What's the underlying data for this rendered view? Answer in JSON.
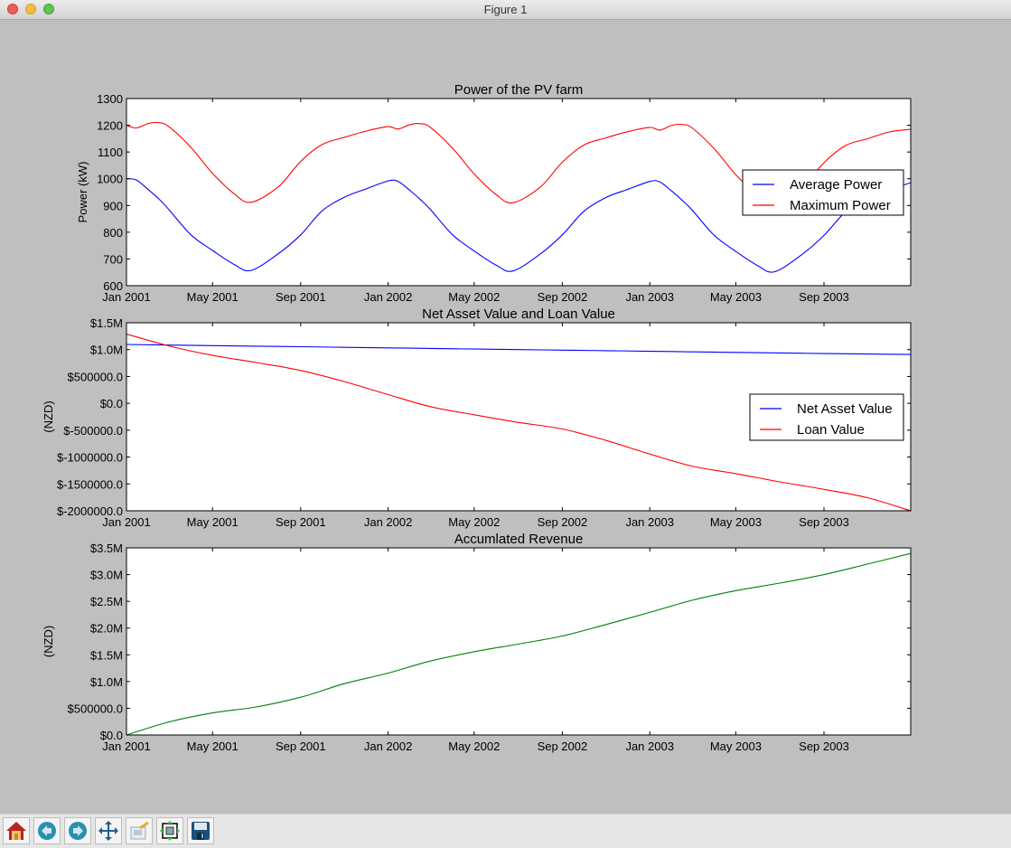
{
  "window": {
    "title": "Figure 1"
  },
  "toolbar": {
    "buttons": [
      {
        "icon": "home-icon"
      },
      {
        "icon": "back-icon"
      },
      {
        "icon": "forward-icon"
      },
      {
        "icon": "pan-icon"
      },
      {
        "icon": "zoom-icon"
      },
      {
        "icon": "subplots-icon"
      },
      {
        "icon": "save-icon"
      }
    ]
  },
  "colors": {
    "blue": "#0000ff",
    "red": "#ff0000",
    "green": "#008000",
    "figure_bg": "#bfbfbf"
  },
  "chart_data": [
    {
      "type": "line",
      "title": "Power of the PV farm",
      "xlabel": "",
      "ylabel": "Power (kW)",
      "xlim": [
        "2001-01-01",
        "2003-12-31"
      ],
      "ylim": [
        600,
        1300
      ],
      "yticks": {
        "values": [
          600,
          700,
          800,
          900,
          1000,
          1100,
          1200,
          1300
        ],
        "labels": [
          "600",
          "700",
          "800",
          "900",
          "1000",
          "1100",
          "1200",
          "1300"
        ]
      },
      "xticks": {
        "values": [
          "2001-01-01",
          "2001-05-01",
          "2001-09-01",
          "2002-01-01",
          "2002-05-01",
          "2002-09-01",
          "2003-01-01",
          "2003-05-01",
          "2003-09-01"
        ],
        "labels": [
          "Jan 2001",
          "May 2001",
          "Sep 2001",
          "Jan 2002",
          "May 2002",
          "Sep 2002",
          "Jan 2003",
          "May 2003",
          "Sep 2003"
        ]
      },
      "legend": "center right",
      "grid": false,
      "x": [
        "2001-01-01",
        "2001-01-15",
        "2001-02-01",
        "2001-02-15",
        "2001-03-01",
        "2001-04-01",
        "2001-05-01",
        "2001-06-01",
        "2001-06-24",
        "2001-08-01",
        "2001-09-01",
        "2001-10-01",
        "2001-11-01",
        "2001-12-01",
        "2002-01-01",
        "2002-01-15",
        "2002-02-01",
        "2002-02-15",
        "2002-03-01",
        "2002-04-01",
        "2002-05-01",
        "2002-06-01",
        "2002-06-24",
        "2002-08-01",
        "2002-09-01",
        "2002-10-01",
        "2002-11-01",
        "2002-12-01",
        "2003-01-01",
        "2003-01-15",
        "2003-02-01",
        "2003-02-15",
        "2003-03-01",
        "2003-04-01",
        "2003-05-01",
        "2003-06-01",
        "2003-06-24",
        "2003-08-01",
        "2003-09-01",
        "2003-10-01",
        "2003-11-01",
        "2003-12-01",
        "2003-12-31"
      ],
      "series": [
        {
          "name": "Average Power",
          "color": "#0000ff",
          "values": [
            1000,
            995,
            958,
            925,
            885,
            790,
            732,
            678,
            657,
            720,
            790,
            880,
            931,
            962,
            992,
            990,
            955,
            922,
            885,
            790,
            730,
            676,
            655,
            718,
            790,
            878,
            930,
            960,
            990,
            988,
            953,
            920,
            883,
            788,
            728,
            674,
            652,
            716,
            788,
            876,
            928,
            958,
            985
          ]
        },
        {
          "name": "Maximum Power",
          "color": "#ff0000",
          "values": [
            1200,
            1190,
            1207,
            1210,
            1195,
            1117,
            1020,
            942,
            912,
            970,
            1065,
            1128,
            1155,
            1178,
            1195,
            1186,
            1203,
            1206,
            1192,
            1114,
            1018,
            940,
            910,
            968,
            1062,
            1126,
            1153,
            1176,
            1192,
            1182,
            1200,
            1203,
            1190,
            1112,
            1015,
            937,
            905,
            965,
            1060,
            1124,
            1150,
            1175,
            1185
          ]
        }
      ]
    },
    {
      "type": "line",
      "title": "Net Asset Value and Loan Value",
      "xlabel": "",
      "ylabel": "(NZD)",
      "xlim": [
        "2001-01-01",
        "2003-12-31"
      ],
      "ylim": [
        -2000000,
        1500000
      ],
      "yticks": {
        "values": [
          -2000000,
          -1500000,
          -1000000,
          -500000,
          0,
          500000,
          1000000,
          1500000
        ],
        "labels": [
          "$-2000000.0",
          "$-1500000.0",
          "$-1000000.0",
          "$-500000.0",
          "$0.0",
          "$500000.0",
          "$1.0M",
          "$1.5M"
        ]
      },
      "xticks": {
        "values": [
          "2001-01-01",
          "2001-05-01",
          "2001-09-01",
          "2002-01-01",
          "2002-05-01",
          "2002-09-01",
          "2003-01-01",
          "2003-05-01",
          "2003-09-01"
        ],
        "labels": [
          "Jan 2001",
          "May 2001",
          "Sep 2001",
          "Jan 2002",
          "May 2002",
          "Sep 2002",
          "Jan 2003",
          "May 2003",
          "Sep 2003"
        ]
      },
      "legend": "center right",
      "grid": false,
      "x": [
        "2001-01-01",
        "2001-03-01",
        "2001-05-01",
        "2001-07-01",
        "2001-09-01",
        "2001-11-01",
        "2002-01-01",
        "2002-03-01",
        "2002-05-01",
        "2002-07-01",
        "2002-09-01",
        "2002-11-01",
        "2003-01-01",
        "2003-03-01",
        "2003-05-01",
        "2003-07-01",
        "2003-09-01",
        "2003-11-01",
        "2003-12-31"
      ],
      "series": [
        {
          "name": "Net Asset Value",
          "color": "#0000ff",
          "values": [
            1096000,
            1085000,
            1075000,
            1064000,
            1054000,
            1043000,
            1032000,
            1022000,
            1011000,
            1001000,
            990000,
            980000,
            969000,
            959000,
            948000,
            938000,
            927000,
            917000,
            910000
          ]
        },
        {
          "name": "Loan Value",
          "color": "#ff0000",
          "values": [
            1290000,
            1070000,
            893000,
            760000,
            612000,
            404000,
            163000,
            -62000,
            -213000,
            -354000,
            -478000,
            -691000,
            -944000,
            -1169000,
            -1309000,
            -1461000,
            -1601000,
            -1758000,
            -2000000
          ]
        }
      ]
    },
    {
      "type": "line",
      "title": "Accumlated Revenue",
      "xlabel": "",
      "ylabel": "(NZD)",
      "xlim": [
        "2001-01-01",
        "2003-12-31"
      ],
      "ylim": [
        0,
        3500000
      ],
      "yticks": {
        "values": [
          0,
          500000,
          1000000,
          1500000,
          2000000,
          2500000,
          3000000,
          3500000
        ],
        "labels": [
          "$0.0",
          "$500000.0",
          "$1.0M",
          "$1.5M",
          "$2.0M",
          "$2.5M",
          "$3.0M",
          "$3.5M"
        ]
      },
      "xticks": {
        "values": [
          "2001-01-01",
          "2001-05-01",
          "2001-09-01",
          "2002-01-01",
          "2002-05-01",
          "2002-09-01",
          "2003-01-01",
          "2003-05-01",
          "2003-09-01"
        ],
        "labels": [
          "Jan 2001",
          "May 2001",
          "Sep 2001",
          "Jan 2002",
          "May 2002",
          "Sep 2002",
          "Jan 2003",
          "May 2003",
          "Sep 2003"
        ]
      },
      "legend": "none",
      "grid": false,
      "x": [
        "2001-01-01",
        "2001-03-01",
        "2001-05-01",
        "2001-07-01",
        "2001-09-01",
        "2001-11-01",
        "2002-01-01",
        "2002-03-01",
        "2002-05-01",
        "2002-07-01",
        "2002-09-01",
        "2002-11-01",
        "2003-01-01",
        "2003-03-01",
        "2003-05-01",
        "2003-07-01",
        "2003-09-01",
        "2003-11-01",
        "2003-12-31"
      ],
      "series": [
        {
          "color": "#008000",
          "values": [
            0,
            243000,
            412000,
            525000,
            706000,
            960000,
            1158000,
            1383000,
            1558000,
            1700000,
            1852000,
            2067000,
            2293000,
            2519000,
            2700000,
            2840000,
            3000000,
            3197000,
            3395000
          ]
        }
      ]
    }
  ]
}
